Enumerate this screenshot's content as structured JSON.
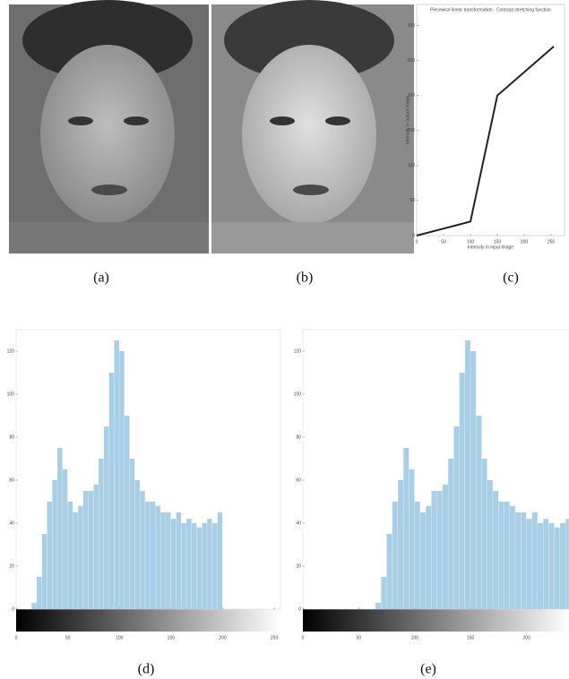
{
  "captions": [
    "(a)",
    "(b)",
    "(c)",
    "(d)",
    "(e)"
  ],
  "chart_data": [
    {
      "type": "line",
      "title": "Piecewise linear transformation - Contrast stretching function",
      "x_label": "Intensity in input image",
      "y_label": "Intensity in output image",
      "x": [
        0,
        100,
        150,
        255
      ],
      "values": [
        0,
        20,
        200,
        270
      ],
      "color": "#222222",
      "xlim": [
        0,
        275
      ],
      "xticks": [
        0,
        50,
        100,
        150,
        200,
        250
      ],
      "ylim": [
        0,
        330
      ],
      "yticks": [
        0,
        50,
        100,
        150,
        200,
        250,
        300
      ],
      "grid": false
    },
    {
      "type": "histogram",
      "color": "#a9cfe6",
      "bins": [
        0,
        5,
        10,
        15,
        20,
        25,
        30,
        35,
        40,
        45,
        50,
        55,
        60,
        65,
        70,
        75,
        80,
        85,
        90,
        95,
        100,
        105,
        110,
        115,
        120,
        125,
        130,
        135,
        140,
        145,
        150,
        155,
        160,
        165,
        170,
        175,
        180,
        185,
        190,
        195,
        200,
        205,
        210,
        215,
        220,
        225,
        230,
        235,
        240,
        245,
        250,
        255
      ],
      "values": [
        0,
        0,
        0,
        3,
        15,
        35,
        50,
        60,
        75,
        65,
        50,
        45,
        48,
        55,
        55,
        58,
        70,
        85,
        110,
        125,
        120,
        90,
        70,
        60,
        55,
        50,
        50,
        48,
        45,
        45,
        42,
        45,
        40,
        42,
        40,
        38,
        40,
        42,
        40,
        45,
        0,
        0,
        0,
        0,
        0,
        0,
        0,
        0,
        0,
        0,
        0
      ],
      "xlim": [
        0,
        256
      ],
      "xticks": [
        0,
        50,
        100,
        150,
        200,
        250
      ],
      "ylim": [
        0,
        130
      ],
      "yticks": [
        0,
        20,
        40,
        60,
        80,
        100,
        120
      ]
    },
    {
      "type": "histogram",
      "color": "#a9cfe6",
      "bins": [
        0,
        5,
        10,
        15,
        20,
        25,
        30,
        35,
        40,
        45,
        50,
        55,
        60,
        65,
        70,
        75,
        80,
        85,
        90,
        95,
        100,
        105,
        110,
        115,
        120,
        125,
        130,
        135,
        140,
        145,
        150,
        155,
        160,
        165,
        170,
        175,
        180,
        185,
        190,
        195,
        200,
        205,
        210,
        215,
        220,
        225,
        230,
        235,
        240,
        245,
        250,
        255
      ],
      "values": [
        0,
        0,
        0,
        0,
        0,
        0,
        0,
        0,
        0,
        0,
        0,
        0,
        0,
        3,
        15,
        35,
        50,
        60,
        75,
        65,
        50,
        45,
        48,
        55,
        55,
        58,
        70,
        85,
        110,
        125,
        120,
        90,
        70,
        60,
        55,
        50,
        50,
        48,
        45,
        45,
        42,
        45,
        40,
        42,
        40,
        38,
        40,
        42,
        40,
        45,
        40
      ],
      "xlim": [
        0,
        238
      ],
      "xticks": [
        0,
        50,
        100,
        150,
        200
      ],
      "ylim": [
        0,
        130
      ],
      "yticks": [
        0,
        20,
        40,
        60,
        80,
        100,
        120
      ]
    }
  ]
}
